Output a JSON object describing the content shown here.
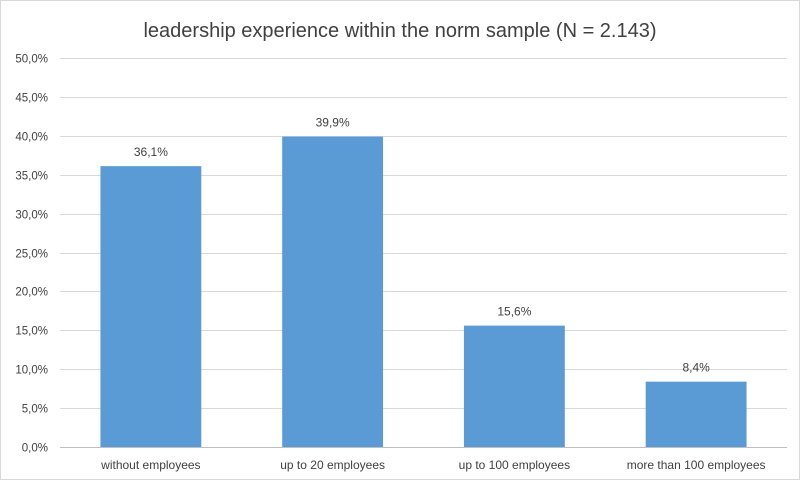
{
  "chart_data": {
    "type": "bar",
    "title": "leadership experience within the norm sample (N = 2.143)",
    "categories": [
      "without employees",
      "up to 20 employees",
      "up to 100 employees",
      "more than 100 employees"
    ],
    "values": [
      36.1,
      39.9,
      15.6,
      8.4
    ],
    "value_labels": [
      "36,1%",
      "39,9%",
      "15,6%",
      "8,4%"
    ],
    "ylim": [
      0,
      50
    ],
    "yticks": [
      0,
      5,
      10,
      15,
      20,
      25,
      30,
      35,
      40,
      45,
      50
    ],
    "ytick_labels": [
      "0,0%",
      "5,0%",
      "10,0%",
      "15,0%",
      "20,0%",
      "25,0%",
      "30,0%",
      "35,0%",
      "40,0%",
      "45,0%",
      "50,0%"
    ],
    "grid": true,
    "legend": "none",
    "bar_color": "#5b9bd5",
    "xlabel": "",
    "ylabel": ""
  }
}
